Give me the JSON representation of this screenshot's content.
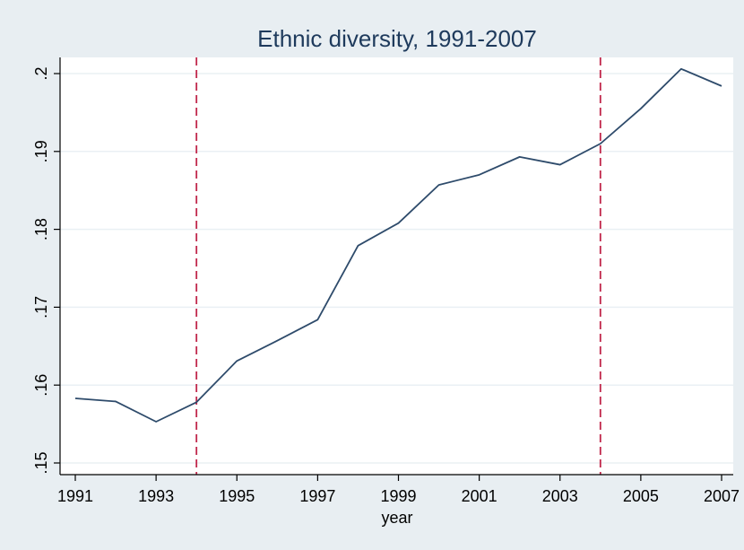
{
  "chart_data": {
    "type": "line",
    "title": "Ethnic diversity, 1991-2007",
    "xlabel": "year",
    "ylabel": "",
    "xlim": [
      1991,
      2007
    ],
    "ylim": [
      0.15,
      0.2
    ],
    "x_ticks": [
      1991,
      1993,
      1995,
      1997,
      1999,
      2001,
      2003,
      2005,
      2007
    ],
    "x_tick_labels": [
      "1991",
      "1993",
      "1995",
      "1997",
      "1999",
      "2001",
      "2003",
      "2005",
      "2007"
    ],
    "y_ticks": [
      0.15,
      0.16,
      0.17,
      0.18,
      0.19,
      0.2
    ],
    "y_tick_labels": [
      ".15",
      ".16",
      ".17",
      ".18",
      ".19",
      ".2"
    ],
    "grid": true,
    "legend": "none",
    "series": [
      {
        "x": [
          1991,
          1992,
          1993,
          1994,
          1995,
          1996,
          1997,
          1998,
          1999,
          2000,
          2001,
          2002,
          2003,
          2004,
          2005,
          2006,
          2007
        ],
        "values": [
          0.1583,
          0.1579,
          0.1553,
          0.1578,
          0.1631,
          0.1657,
          0.1684,
          0.1779,
          0.1808,
          0.1857,
          0.187,
          0.1893,
          0.1883,
          0.191,
          0.1955,
          0.2006,
          0.1984
        ],
        "color": "#2e4b6b"
      }
    ],
    "reference_lines": [
      {
        "x": 1994,
        "style": "dashed",
        "color": "#c0264a"
      },
      {
        "x": 2004,
        "style": "dashed",
        "color": "#c0264a"
      }
    ]
  },
  "colors": {
    "outer_background": "#e8eef2",
    "plot_background": "#ffffff",
    "gridline": "#eaf0f4",
    "axis": "#000000",
    "title": "#1e3a5c"
  }
}
